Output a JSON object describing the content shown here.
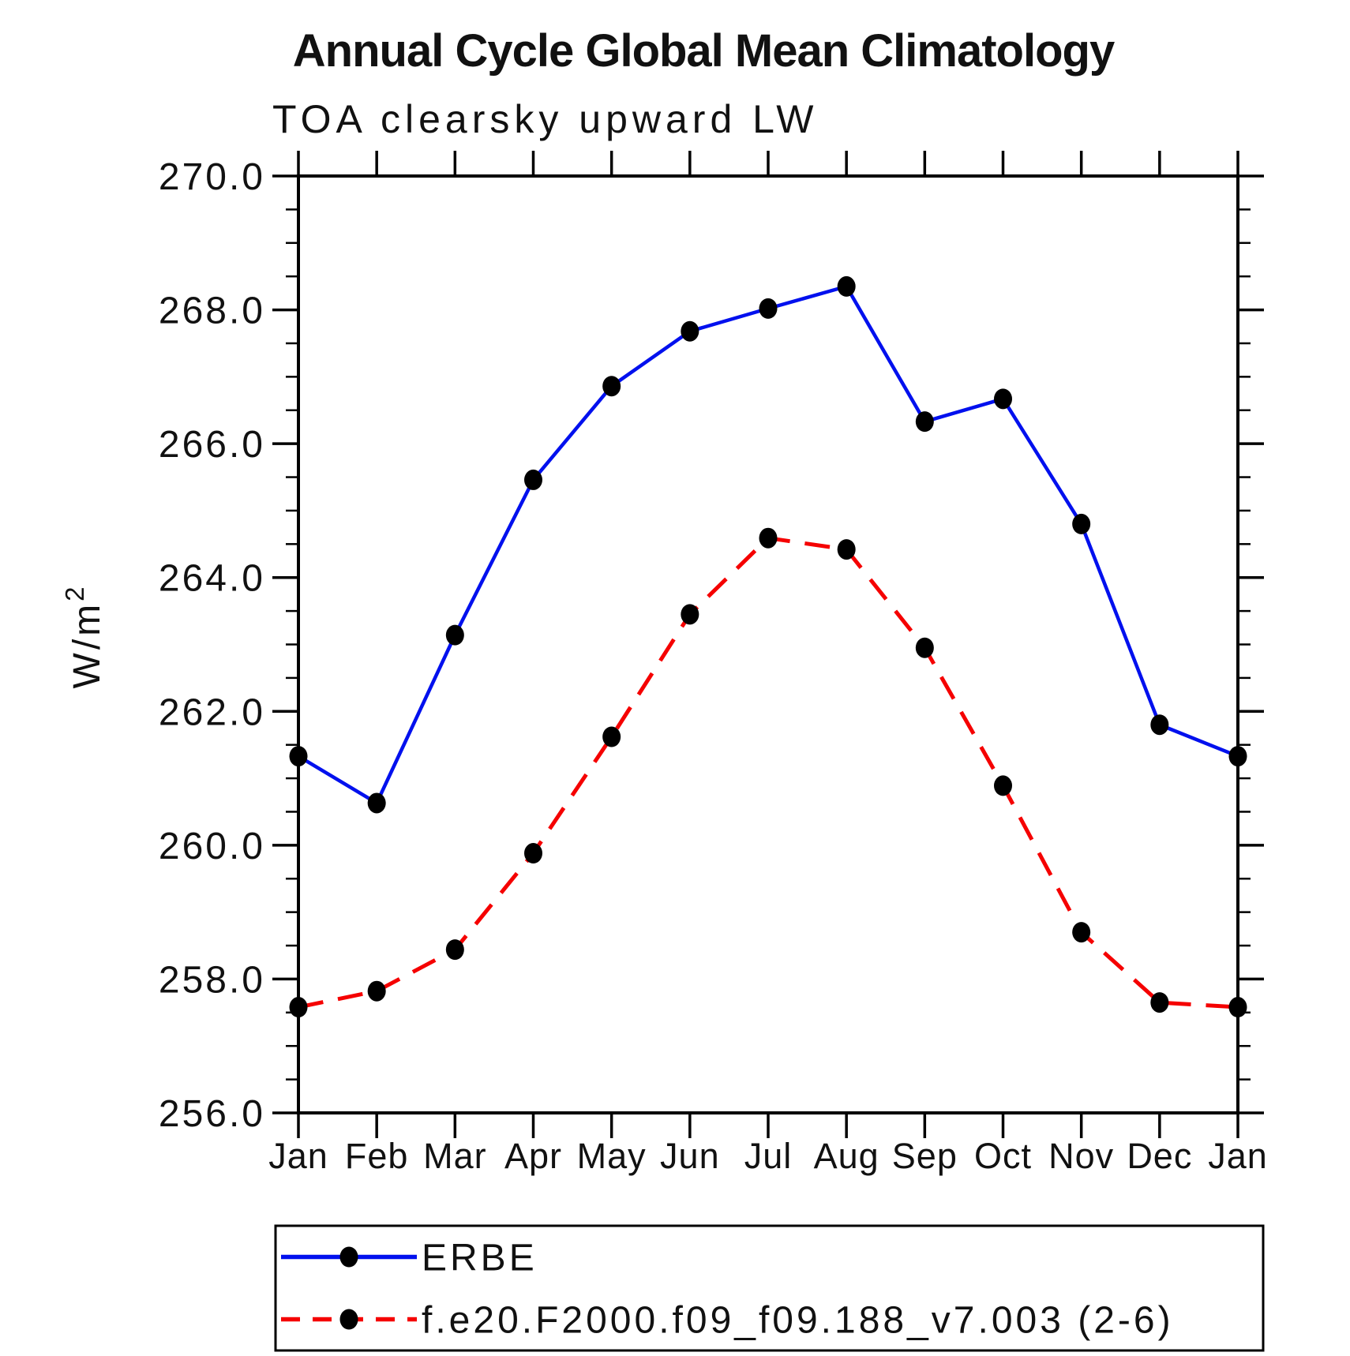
{
  "title": "Annual Cycle Global Mean Climatology",
  "subtitle": "TOA clearsky upward LW",
  "ylabel": {
    "text": "W/m",
    "sup": "2"
  },
  "chart_data": {
    "type": "line",
    "categories": [
      "Jan",
      "Feb",
      "Mar",
      "Apr",
      "May",
      "Jun",
      "Jul",
      "Aug",
      "Sep",
      "Oct",
      "Nov",
      "Dec",
      "Jan"
    ],
    "series": [
      {
        "name": "ERBE",
        "color": "#0010ee",
        "line_style": "solid",
        "marker": "filled-circle",
        "marker_color": "#000000",
        "values": [
          261.33,
          260.63,
          263.14,
          265.46,
          266.86,
          267.68,
          268.02,
          268.35,
          266.33,
          266.67,
          264.8,
          261.8,
          261.33
        ]
      },
      {
        "name": "f.e20.F2000.f09_f09.188_v7.003 (2-6)",
        "color": "#f50000",
        "line_style": "dashed",
        "marker": "filled-circle",
        "marker_color": "#000000",
        "values": [
          257.58,
          257.82,
          258.44,
          259.88,
          261.62,
          263.45,
          264.59,
          264.42,
          262.95,
          260.89,
          258.7,
          257.65,
          257.58
        ]
      }
    ],
    "xlabel": "",
    "ylabel": "W/m2",
    "ylim": [
      256.0,
      270.0
    ],
    "ytick_major": 2.0,
    "ytick_minor": 0.5,
    "ytick_labels": [
      "270.0",
      "268.0",
      "266.0",
      "264.0",
      "262.0",
      "260.0",
      "258.0",
      "256.0"
    ],
    "grid": false,
    "frame": "box",
    "ticks": "outward-all-sides",
    "legend_position": "bottom-box"
  },
  "colors": {
    "axis": "#000000",
    "text": "#111111",
    "subtitle_text": "#2b2b2b",
    "background": "#ffffff"
  }
}
